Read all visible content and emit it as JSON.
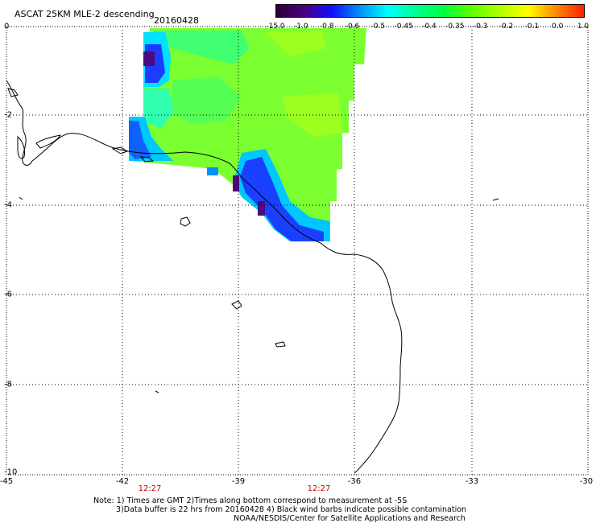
{
  "header": {
    "title": "ASCAT 25KM MLE-2 descending",
    "date": "20160428"
  },
  "colorbar": {
    "labels": [
      "-15.0",
      "-1.0",
      "-0.8",
      "-0.6",
      "-0.5",
      "-0.45",
      "-0.4",
      "-0.35",
      "-0.3",
      "-0.2",
      "-0.1",
      "0.0",
      "1.0"
    ],
    "colors": [
      "#2a0030",
      "#4b0082",
      "#1010ff",
      "#0090ff",
      "#00ffff",
      "#00ff90",
      "#00ff40",
      "#60ff00",
      "#b0ff00",
      "#ffff00",
      "#ff8800",
      "#ff2000"
    ]
  },
  "axes": {
    "x_ticks": [
      "-45",
      "-42",
      "-39",
      "-36",
      "-33",
      "-30"
    ],
    "y_ticks": [
      "0",
      "-2",
      "-4",
      "-6",
      "-8",
      "-10"
    ]
  },
  "times": [
    "12:27",
    "12:27"
  ],
  "notes": {
    "line1": "Note: 1) Times are GMT 2)Times along bottom correspond to measurement at -5S",
    "line2": "3)Data buffer is 22 hrs from 20160428 4) Black wind barbs indicate possible contamination",
    "line3": "NOAA/NESDIS/Center for Satellite Applications and Research"
  }
}
